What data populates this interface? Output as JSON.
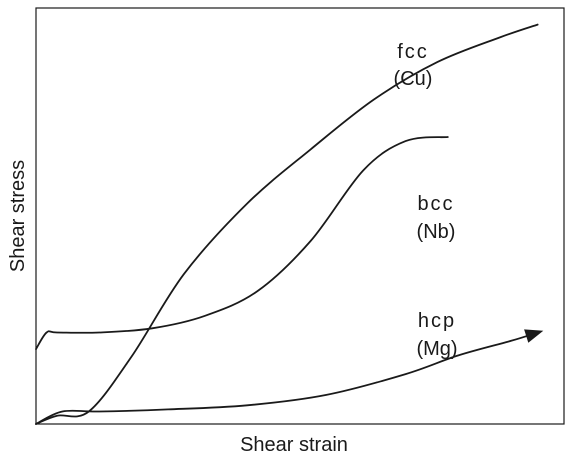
{
  "chart_data": {
    "type": "line",
    "title": "",
    "xlabel": "Shear strain",
    "ylabel": "Shear stress",
    "grid": false,
    "legend": "none",
    "xlim": [
      0,
      1
    ],
    "ylim": [
      0,
      1
    ],
    "series": [
      {
        "name": "fcc",
        "sub": "(Cu)",
        "points": [
          [
            0.0,
            0.0
          ],
          [
            0.04,
            0.02
          ],
          [
            0.1,
            0.03
          ],
          [
            0.18,
            0.16
          ],
          [
            0.28,
            0.36
          ],
          [
            0.4,
            0.53
          ],
          [
            0.52,
            0.66
          ],
          [
            0.64,
            0.78
          ],
          [
            0.76,
            0.87
          ],
          [
            0.88,
            0.93
          ],
          [
            0.95,
            0.96
          ]
        ]
      },
      {
        "name": "bcc",
        "sub": "(Nb)",
        "points": [
          [
            0.0,
            0.18
          ],
          [
            0.02,
            0.22
          ],
          [
            0.04,
            0.22
          ],
          [
            0.12,
            0.22
          ],
          [
            0.22,
            0.23
          ],
          [
            0.32,
            0.26
          ],
          [
            0.42,
            0.32
          ],
          [
            0.52,
            0.44
          ],
          [
            0.62,
            0.61
          ],
          [
            0.7,
            0.68
          ],
          [
            0.78,
            0.69
          ]
        ]
      },
      {
        "name": "hcp",
        "sub": "(Mg)",
        "points": [
          [
            0.0,
            0.0
          ],
          [
            0.05,
            0.03
          ],
          [
            0.12,
            0.03
          ],
          [
            0.25,
            0.035
          ],
          [
            0.4,
            0.045
          ],
          [
            0.55,
            0.07
          ],
          [
            0.7,
            0.12
          ],
          [
            0.8,
            0.165
          ],
          [
            0.9,
            0.2
          ],
          [
            0.95,
            0.22
          ]
        ]
      }
    ]
  }
}
